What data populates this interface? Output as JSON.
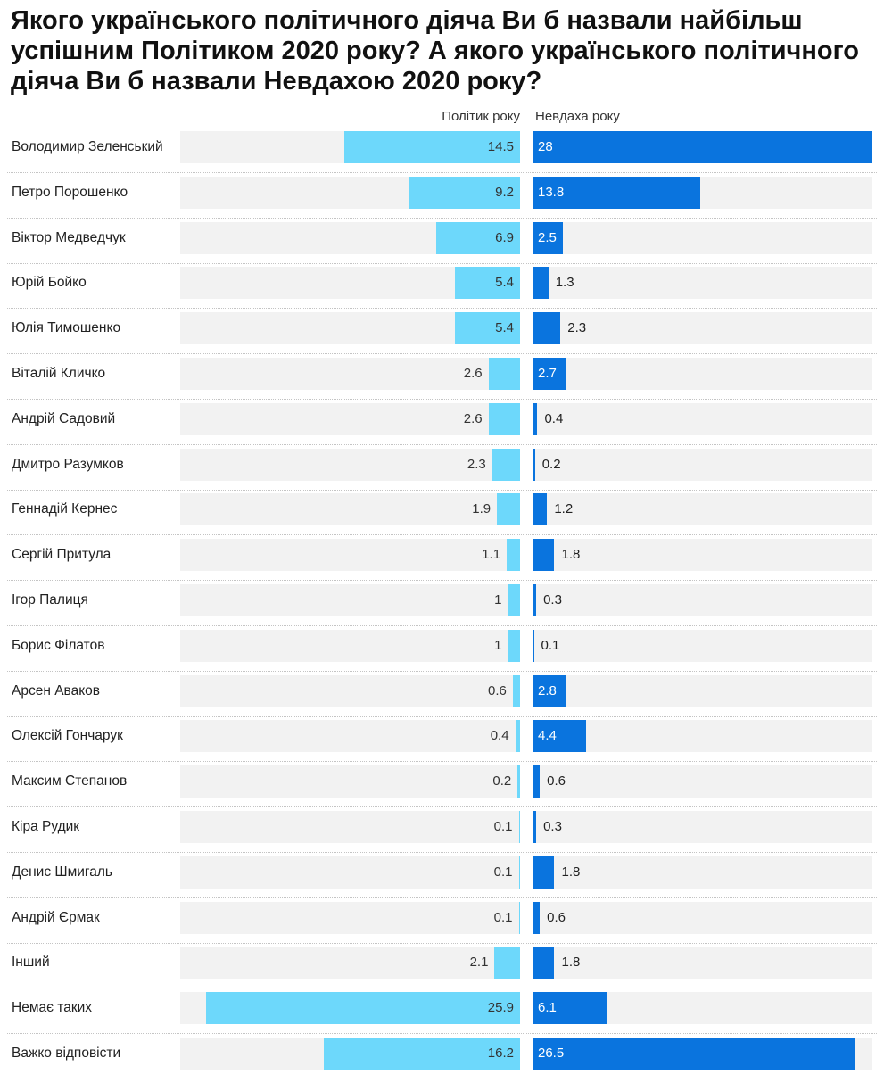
{
  "title": "Якого українського політичного діяча Ви б назвали найбільш успішним Політиком 2020 року? А якого українського політичного діяча Ви б назвали Невдахою 2020 року?",
  "colors": {
    "politician": "#6dd8fb",
    "loser": "#0a74de",
    "track": "#f2f2f2"
  },
  "chart_data": {
    "type": "bar",
    "orientation": "horizontal",
    "title": "Якого українського політичного діяча Ви б назвали найбільш успішним Політиком 2020 року? А якого українського політичного діяча Ви б назвали Невдахою 2020 року?",
    "categories": [
      "Володимир Зеленський",
      "Петро Порошенко",
      "Віктор Медведчук",
      "Юрій Бойко",
      "Юлія Тимошенко",
      "Віталій Кличко",
      "Андрій Садовий",
      "Дмитро Разумков",
      "Геннадій Кернес",
      "Сергій Притула",
      "Ігор Палиця",
      "Борис Філатов",
      "Арсен Аваков",
      "Олексій Гончарук",
      "Максим Степанов",
      "Кіра Рудик",
      "Денис Шмигаль",
      "Андрій Єрмак",
      "Інший",
      "Немає таких",
      "Важко відповісти"
    ],
    "series": [
      {
        "name": "Політик року",
        "values": [
          14.5,
          9.2,
          6.9,
          5.4,
          5.4,
          2.6,
          2.6,
          2.3,
          1.9,
          1.1,
          1,
          1,
          0.6,
          0.4,
          0.2,
          0.1,
          0.1,
          0.1,
          2.1,
          25.9,
          16.2
        ]
      },
      {
        "name": "Невдаха року",
        "values": [
          28,
          13.8,
          2.5,
          1.3,
          2.3,
          2.7,
          0.4,
          0.2,
          1.2,
          1.8,
          0.3,
          0.1,
          2.8,
          4.4,
          0.6,
          0.3,
          1.8,
          0.6,
          1.8,
          6.1,
          26.5
        ]
      }
    ],
    "xlim": [
      0,
      28
    ],
    "grid": false,
    "legend": "column headers above bars"
  }
}
